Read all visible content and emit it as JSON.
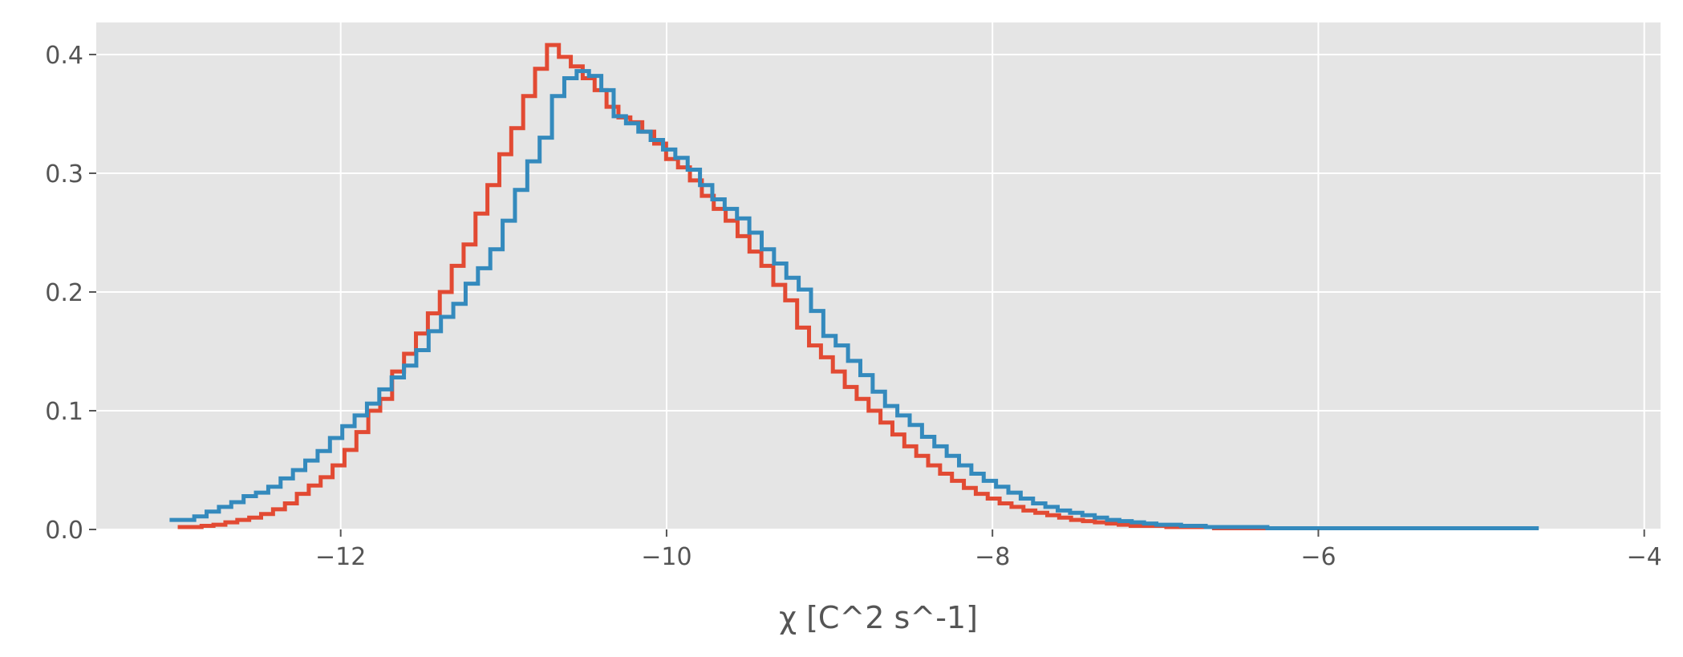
{
  "chart_data": {
    "type": "line",
    "style": "step-histogram",
    "title": "",
    "xlabel": "χ [C^2 s^-1]",
    "ylabel": "",
    "xlim": [
      -13.5,
      -3.9
    ],
    "ylim": [
      0,
      0.427
    ],
    "xticks": [
      -12,
      -10,
      -8,
      -6,
      -4
    ],
    "xtick_labels": [
      "−12",
      "−10",
      "−8",
      "−6",
      "−4"
    ],
    "yticks": [
      0.0,
      0.1,
      0.2,
      0.3,
      0.4
    ],
    "ytick_labels": [
      "0.0",
      "0.1",
      "0.2",
      "0.3",
      "0.4"
    ],
    "grid": true,
    "background": "#E5E5E5",
    "series": [
      {
        "color": "#E24A33",
        "x_start": -13.0,
        "bin_width": 0.0731,
        "values": [
          0.002,
          0.002,
          0.003,
          0.004,
          0.006,
          0.008,
          0.01,
          0.013,
          0.017,
          0.022,
          0.03,
          0.037,
          0.044,
          0.054,
          0.067,
          0.082,
          0.1,
          0.11,
          0.133,
          0.148,
          0.165,
          0.182,
          0.2,
          0.222,
          0.24,
          0.266,
          0.29,
          0.316,
          0.338,
          0.365,
          0.388,
          0.408,
          0.398,
          0.39,
          0.38,
          0.37,
          0.356,
          0.347,
          0.343,
          0.335,
          0.325,
          0.312,
          0.305,
          0.294,
          0.281,
          0.27,
          0.26,
          0.247,
          0.234,
          0.222,
          0.206,
          0.193,
          0.17,
          0.155,
          0.145,
          0.133,
          0.12,
          0.11,
          0.1,
          0.09,
          0.08,
          0.07,
          0.062,
          0.054,
          0.047,
          0.041,
          0.035,
          0.03,
          0.026,
          0.022,
          0.019,
          0.016,
          0.014,
          0.012,
          0.01,
          0.008,
          0.007,
          0.006,
          0.005,
          0.004,
          0.003,
          0.003,
          0.003,
          0.002,
          0.002,
          0.002,
          0.002,
          0.001,
          0.001,
          0.001,
          0.001,
          0.001,
          0.001,
          0.001,
          0.001
        ]
      },
      {
        "color": "#348ABD",
        "x_start": -13.05,
        "bin_width": 0.0757,
        "values": [
          0.008,
          0.008,
          0.011,
          0.015,
          0.019,
          0.023,
          0.028,
          0.031,
          0.036,
          0.043,
          0.05,
          0.058,
          0.066,
          0.077,
          0.087,
          0.096,
          0.106,
          0.118,
          0.128,
          0.138,
          0.151,
          0.167,
          0.179,
          0.19,
          0.207,
          0.22,
          0.236,
          0.26,
          0.286,
          0.31,
          0.33,
          0.365,
          0.38,
          0.386,
          0.382,
          0.37,
          0.348,
          0.342,
          0.335,
          0.328,
          0.32,
          0.313,
          0.303,
          0.29,
          0.278,
          0.27,
          0.262,
          0.25,
          0.236,
          0.224,
          0.212,
          0.202,
          0.184,
          0.163,
          0.155,
          0.142,
          0.13,
          0.116,
          0.104,
          0.096,
          0.088,
          0.078,
          0.07,
          0.062,
          0.054,
          0.047,
          0.041,
          0.036,
          0.031,
          0.026,
          0.022,
          0.019,
          0.016,
          0.014,
          0.012,
          0.01,
          0.008,
          0.007,
          0.006,
          0.005,
          0.004,
          0.004,
          0.003,
          0.003,
          0.002,
          0.002,
          0.002,
          0.002,
          0.002,
          0.001,
          0.001,
          0.001,
          0.001,
          0.001,
          0.001,
          0.001,
          0.001,
          0.001,
          0.001,
          0.001,
          0.001,
          0.001,
          0.001,
          0.001,
          0.001,
          0.001,
          0.001,
          0.001,
          0.001,
          0.001,
          0.001
        ]
      }
    ]
  }
}
